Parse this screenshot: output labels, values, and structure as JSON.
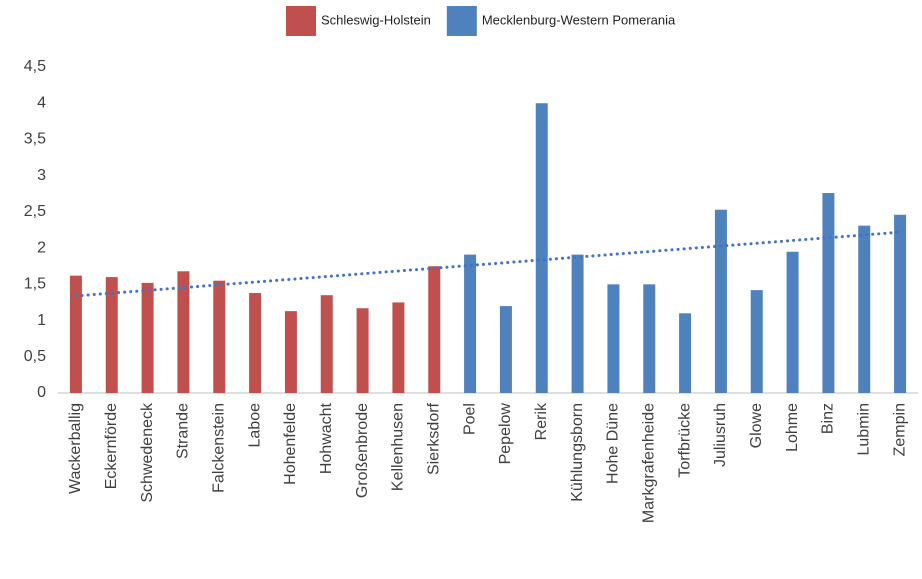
{
  "chart_data": {
    "type": "bar",
    "categories": [
      "Wackerballig",
      "Eckernförde",
      "Schwedeneck",
      "Strande",
      "Falckenstein",
      "Laboe",
      "Hohenfelde",
      "Hohwacht",
      "Großenbrode",
      "Kellenhusen",
      "Sierksdorf",
      "Poel",
      "Pepelow",
      "Rerik",
      "Kühlungsborn",
      "Hohe Düne",
      "Markgrafenheide",
      "Torfbrücke",
      "Juliusruh",
      "Glowe",
      "Lohme",
      "Binz",
      "Lubmin",
      "Zempin"
    ],
    "series": [
      {
        "name": "Schleswig-Holstein",
        "color": "#c0504d",
        "values": [
          1.62,
          1.6,
          1.52,
          1.68,
          1.55,
          1.38,
          1.13,
          1.35,
          1.17,
          1.25,
          1.75,
          null,
          null,
          null,
          null,
          null,
          null,
          null,
          null,
          null,
          null,
          null,
          null,
          null
        ]
      },
      {
        "name": "Mecklenburg-Western Pomerania",
        "color": "#4f81bd",
        "values": [
          null,
          null,
          null,
          null,
          null,
          null,
          null,
          null,
          null,
          null,
          null,
          1.91,
          1.2,
          4.0,
          1.91,
          1.5,
          1.5,
          1.1,
          2.53,
          1.42,
          1.95,
          2.76,
          2.31,
          2.46
        ]
      }
    ],
    "trendline": {
      "color": "#4472c4",
      "values": [
        1.34,
        2.22
      ]
    },
    "ylim": [
      0,
      4.5
    ],
    "yticks": [
      0,
      {
        "value": 0.5,
        "label": "0,5"
      },
      1,
      {
        "value": 1.5,
        "label": "1,5"
      },
      2,
      {
        "value": 2.5,
        "label": "2,5"
      },
      3,
      {
        "value": 3.5,
        "label": "3,5"
      },
      4,
      {
        "value": 4.5,
        "label": "4,5"
      }
    ],
    "grid": false,
    "legend": "top"
  }
}
